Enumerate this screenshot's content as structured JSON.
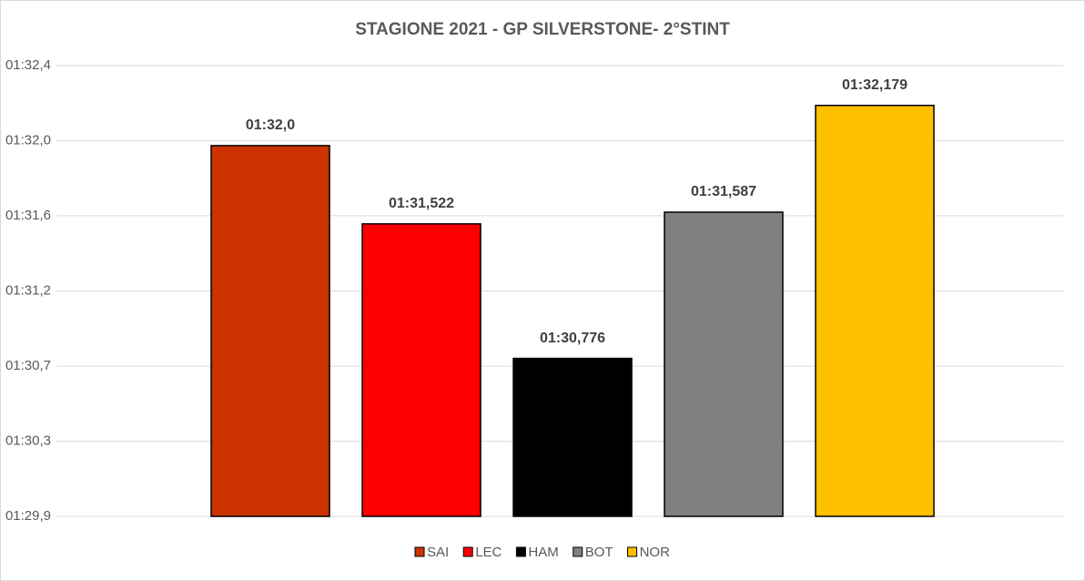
{
  "chart_data": {
    "type": "bar",
    "title": "STAGIONE 2021 - GP SILVERSTONE- 2°STINT",
    "categories": [
      "SAI",
      "LEC",
      "HAM",
      "BOT",
      "NOR"
    ],
    "values": [
      91.956,
      91.522,
      90.776,
      91.587,
      92.179
    ],
    "value_labels": [
      "01:32,0",
      "01:31,522",
      "01:30,776",
      "01:31,587",
      "01:32,179"
    ],
    "colors": [
      "#cc3300",
      "#ff0000",
      "#000000",
      "#808080",
      "#ffc000"
    ],
    "ylim": [
      89.9,
      92.4
    ],
    "yticks": [
      {
        "value": 89.9,
        "label": "01:29,9"
      },
      {
        "value": 90.317,
        "label": "01:30,3"
      },
      {
        "value": 90.733,
        "label": "01:30,7"
      },
      {
        "value": 91.15,
        "label": "01:31,2"
      },
      {
        "value": 91.567,
        "label": "01:31,6"
      },
      {
        "value": 91.983,
        "label": "01:32,0"
      },
      {
        "value": 92.4,
        "label": "01:32,4"
      }
    ],
    "grid": true,
    "legend": "bottom"
  }
}
